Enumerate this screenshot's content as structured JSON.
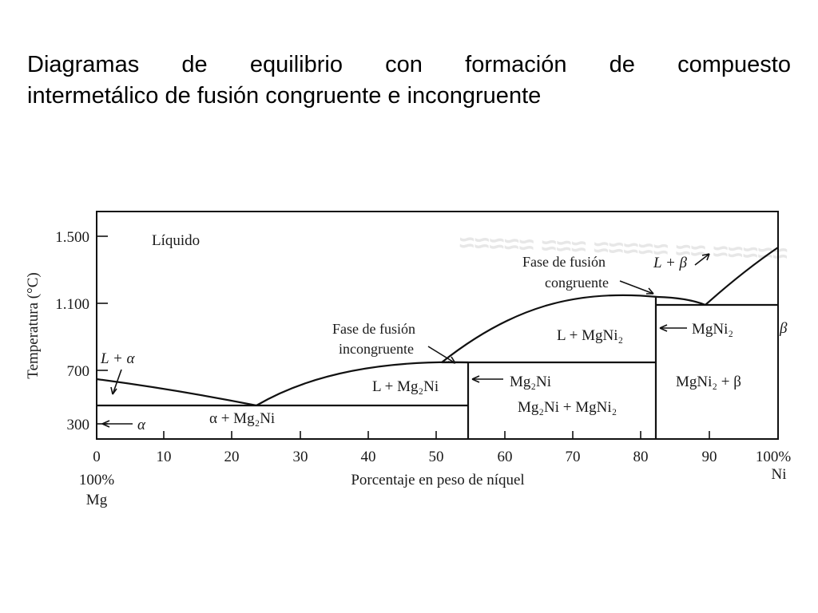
{
  "title": {
    "line1": "Diagramas de equilibrio con formación de compuesto",
    "line2": "intermetálico  de fusión congruente e incongruente"
  },
  "diagram": {
    "y_axis_label": "Temperatura (°C)",
    "x_axis_label": "Porcentaje en peso de níquel",
    "x_ticks": [
      "0",
      "10",
      "20",
      "30",
      "40",
      "50",
      "60",
      "70",
      "80",
      "90",
      "100%"
    ],
    "y_ticks": [
      "1.500",
      "1.100",
      "700",
      "300"
    ],
    "x_left_end": {
      "top": "100%",
      "bottom": "Mg"
    },
    "x_right_end": "Ni",
    "regions": {
      "liquid": "Líquido",
      "l_alpha": "L + α",
      "alpha": "α",
      "alpha_mg2ni": "α + Mg₂Ni",
      "l_mg2ni": "L + Mg₂Ni",
      "mg2ni": "Mg₂Ni",
      "mg2ni_mgni2": "Mg₂Ni + MgNi₂",
      "l_mgni2": "L + MgNi₂",
      "mgni2": "MgNi₂",
      "mgni2_beta": "MgNi₂ + β",
      "l_beta": "L + β",
      "beta": "β"
    },
    "annotations": {
      "incongruent_1": "Fase de fusión",
      "incongruent_2": "incongruente",
      "congruent_1": "Fase de fusión",
      "congruent_2": "congruente"
    }
  }
}
